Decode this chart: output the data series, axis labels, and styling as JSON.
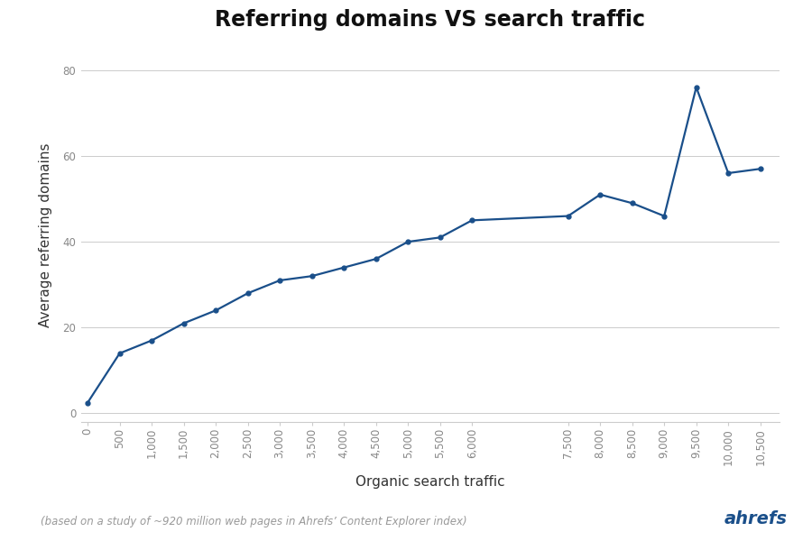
{
  "title": "Referring domains VS search traffic",
  "xlabel": "Organic search traffic",
  "ylabel": "Average referring domains",
  "footnote": "(based on a study of ~920 million web pages in Ahrefs’ Content Explorer index)",
  "watermark": "ahrefs",
  "x": [
    0,
    500,
    1000,
    1500,
    2000,
    2500,
    3000,
    3500,
    4000,
    4500,
    5000,
    5500,
    6000,
    7500,
    8000,
    8500,
    9000,
    9500,
    10000,
    10500
  ],
  "y": [
    2.5,
    14,
    17,
    21,
    24,
    28,
    31,
    32,
    34,
    36,
    40,
    41,
    45,
    46,
    51,
    49,
    46,
    76,
    56,
    57
  ],
  "line_color": "#1a4f8a",
  "line_width": 1.6,
  "marker": "o",
  "marker_size": 3.5,
  "background_color": "#ffffff",
  "grid_color": "#cccccc",
  "xlim": [
    -100,
    10800
  ],
  "ylim": [
    -2,
    85
  ],
  "yticks": [
    0,
    20,
    40,
    60,
    80
  ],
  "xticks": [
    0,
    500,
    1000,
    1500,
    2000,
    2500,
    3000,
    3500,
    4000,
    4500,
    5000,
    5500,
    6000,
    7500,
    8000,
    8500,
    9000,
    9500,
    10000,
    10500
  ],
  "xtick_labels": [
    "0",
    "500",
    "1,000",
    "1,500",
    "2,000",
    "2,500",
    "3,000",
    "3,500",
    "4,000",
    "4,500",
    "5,000",
    "5,500",
    "6,000",
    "7,500",
    "8,000",
    "8,500",
    "9,000",
    "9,500",
    "10,000",
    "10,500"
  ],
  "title_fontsize": 17,
  "label_fontsize": 11,
  "tick_fontsize": 8.5,
  "footnote_fontsize": 8.5,
  "watermark_fontsize": 14,
  "watermark_color": "#1a4f8a",
  "tick_color": "#888888",
  "label_color": "#333333"
}
